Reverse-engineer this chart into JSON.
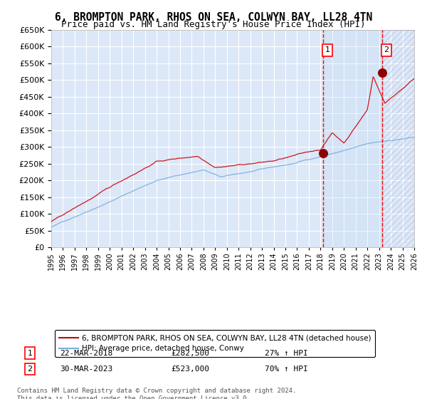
{
  "title": "6, BROMPTON PARK, RHOS ON SEA, COLWYN BAY, LL28 4TN",
  "subtitle": "Price paid vs. HM Land Registry's House Price Index (HPI)",
  "bg_color": "#ffffff",
  "plot_bg_color": "#dce8f8",
  "grid_color": "#ffffff",
  "line_red_color": "#cc0000",
  "line_blue_color": "#7aaddb",
  "transaction1_date": "22-MAR-2018",
  "transaction1_price": 282500,
  "transaction1_hpi": "27% ↑ HPI",
  "transaction1_year": 2018.22,
  "transaction2_date": "30-MAR-2023",
  "transaction2_price": 523000,
  "transaction2_hpi": "70% ↑ HPI",
  "transaction2_year": 2023.24,
  "legend_line1": "6, BROMPTON PARK, RHOS ON SEA, COLWYN BAY, LL28 4TN (detached house)",
  "legend_line2": "HPI: Average price, detached house, Conwy",
  "footnote": "Contains HM Land Registry data © Crown copyright and database right 2024.\nThis data is licensed under the Open Government Licence v3.0.",
  "xmin": 1995,
  "xmax": 2026,
  "ymin": 0,
  "ymax": 650000,
  "yticks": [
    0,
    50000,
    100000,
    150000,
    200000,
    250000,
    300000,
    350000,
    400000,
    450000,
    500000,
    550000,
    600000,
    650000
  ]
}
